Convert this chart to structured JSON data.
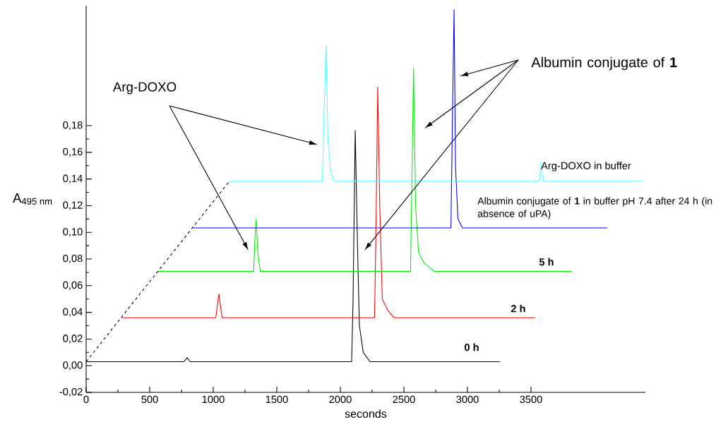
{
  "chart_data": {
    "type": "line",
    "xlabel": "seconds",
    "ylabel": "A$_{495 nm}$",
    "xlim": [
      0,
      4400
    ],
    "ylim": [
      -0.02,
      0.27
    ],
    "xticks": [
      0,
      500,
      1000,
      1500,
      2000,
      2500,
      3000,
      3500
    ],
    "yticks": [
      {
        "value": -0.02,
        "label": "-0,02"
      },
      {
        "value": 0,
        "label": "0,00"
      },
      {
        "value": 0.02,
        "label": "0,02"
      },
      {
        "value": 0.04,
        "label": "0,04"
      },
      {
        "value": 0.06,
        "label": "0,06"
      },
      {
        "value": 0.08,
        "label": "0,08"
      },
      {
        "value": 0.1,
        "label": "0,10"
      },
      {
        "value": 0.12,
        "label": "0,12"
      },
      {
        "value": 0.14,
        "label": "0,14"
      },
      {
        "value": 0.16,
        "label": "0,16"
      },
      {
        "value": 0.18,
        "label": "0,18"
      }
    ],
    "series": [
      {
        "name": "0 h",
        "color": "#000000",
        "x": [
          0,
          770,
          794,
          818,
          2089,
          2100,
          2117,
          2135,
          2150,
          2180,
          2233,
          3256
        ],
        "values": [
          0.003,
          0.003,
          0.006,
          0.003,
          0.003,
          0.05,
          0.1765,
          0.09,
          0.03,
          0.01,
          0.003,
          0.003
        ]
      },
      {
        "name": "2 h",
        "color": "#ff0000",
        "x": [
          279,
          1020,
          1044,
          1070,
          2269,
          2280,
          2294,
          2310,
          2330,
          2370,
          2422,
          3533
        ],
        "values": [
          0.036,
          0.036,
          0.0538,
          0.036,
          0.036,
          0.1,
          0.209,
          0.12,
          0.05,
          0.042,
          0.036,
          0.036
        ]
      },
      {
        "name": "5 h",
        "color": "#00ee00",
        "x": [
          563,
          1318,
          1330,
          1338,
          1350,
          1370,
          2552,
          2565,
          2576,
          2592,
          2615,
          2660,
          2739,
          3822
        ],
        "values": [
          0.0707,
          0.0707,
          0.1,
          0.1099,
          0.085,
          0.0707,
          0.0707,
          0.15,
          0.223,
          0.12,
          0.085,
          0.077,
          0.0707,
          0.0707
        ]
      },
      {
        "name": "Albumin conjugate of **1** in buffer pH 7.4 after 24 h (in absence of uPA)",
        "color": "#0000ff",
        "x": [
          841,
          2870,
          2884,
          2895,
          2906,
          2925,
          2961,
          4100
        ],
        "values": [
          0.1033,
          0.1033,
          0.2,
          0.267,
          0.15,
          0.11,
          0.1033,
          0.1033
        ]
      },
      {
        "name": "Arg-DOXO in buffer",
        "color": "#55ffff",
        "x": [
          1128,
          1858,
          1875,
          1888,
          1902,
          1925,
          1953,
          3565,
          3580,
          3595,
          4381
        ],
        "values": [
          0.1384,
          0.1384,
          0.2,
          0.2403,
          0.17,
          0.145,
          0.1384,
          0.1384,
          0.152,
          0.1384,
          0.1384
        ]
      },
      {
        "color": "#000000",
        "line_style": "dashed",
        "x": [
          0,
          1128
        ],
        "values": [
          0.003,
          0.1384
        ]
      }
    ],
    "annotations": [
      "Arg-DOXO",
      "Albumin conjugate of **1**"
    ]
  }
}
